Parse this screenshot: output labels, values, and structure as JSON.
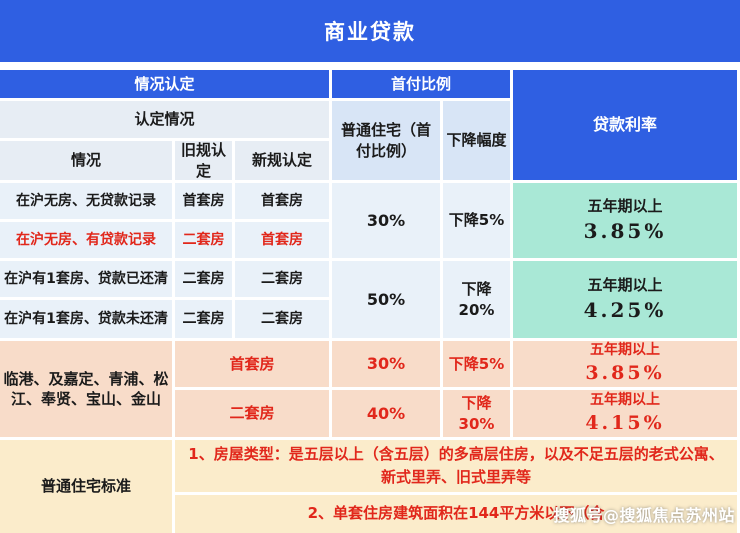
{
  "title": "商业贷款",
  "header": {
    "situation": "情况认定",
    "down_payment": "首付比例",
    "loan_rate": "贷款利率",
    "recognition": "认定情况",
    "case": "情况",
    "old_rule": "旧规认定",
    "new_rule": "新规认定",
    "normal_house": "普通住宅（首付比例）",
    "drop": "下降幅度"
  },
  "recognition_rows": [
    {
      "case": "在沪无房、无贷款记录",
      "old": "首套房",
      "new": "首套房"
    },
    {
      "case": "在沪无房、有贷款记录",
      "old": "二套房",
      "new": "首套房"
    },
    {
      "case": "在沪有1套房、贷款已还清",
      "old": "二套房",
      "new": "二套房"
    },
    {
      "case": "在沪有1套房、贷款未还清",
      "old": "二套房",
      "new": "二套房"
    }
  ],
  "city_blocks": [
    {
      "ratio": "30%",
      "drop": "下降5%",
      "rate_term": "五年期以上",
      "rate_value": "3.85%"
    },
    {
      "ratio": "50%",
      "drop": "下降20%",
      "rate_term": "五年期以上",
      "rate_value": "4.25%"
    }
  ],
  "suburb": {
    "areas": "临港、及嘉定、青浦、松江、奉贤、宝山、金山",
    "rows": [
      {
        "type": "首套房",
        "ratio": "30%",
        "drop": "下降5%",
        "rate_term": "五年期以上",
        "rate_value": "3.85%"
      },
      {
        "type": "二套房",
        "ratio": "40%",
        "drop": "下降30%",
        "rate_term": "五年期以上",
        "rate_value": "4.15%"
      }
    ]
  },
  "standard": {
    "label": "普通住宅标准",
    "note1": "1、房屋类型：是五层以上（含五层）的多高层住房，以及不足五层的老式公寓、新式里弄、旧式里弄等",
    "note2": "2、单套住房建筑面积在144平方米以下（含"
  },
  "watermark": "搜狐号@搜狐焦点苏州站",
  "colors": {
    "header_blue": "#2f5fe2",
    "sub_header_grey": "#e7edf4",
    "sub_header_blue": "#d8e5f6",
    "data_row": "#e9f1f9",
    "mint_green": "#a9e8d6",
    "salmon_pink": "#f8dcc9",
    "cream_yellow": "#fbeccb",
    "alert_red": "#e1271b",
    "text_white": "#ffffff"
  }
}
